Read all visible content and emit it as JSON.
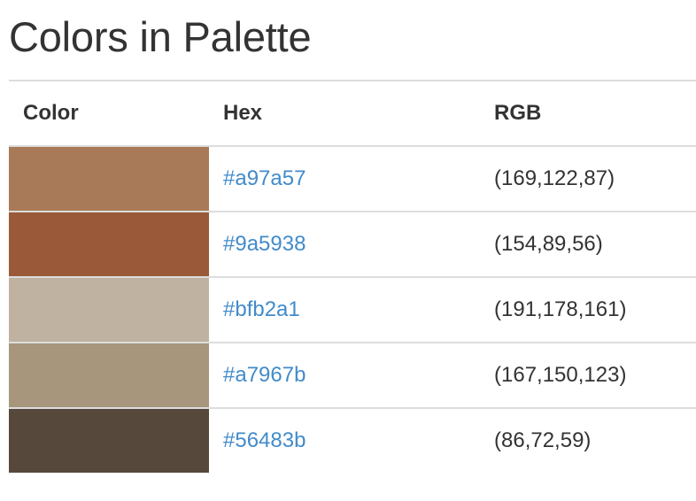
{
  "page": {
    "title": "Colors in Palette"
  },
  "table": {
    "headers": {
      "color": "Color",
      "hex": "Hex",
      "rgb": "RGB"
    },
    "rows": [
      {
        "swatch_color": "#a97a57",
        "hex": "#a97a57",
        "rgb": "(169,122,87)"
      },
      {
        "swatch_color": "#9a5938",
        "hex": "#9a5938",
        "rgb": "(154,89,56)"
      },
      {
        "swatch_color": "#bfb2a1",
        "hex": "#bfb2a1",
        "rgb": "(191,178,161)"
      },
      {
        "swatch_color": "#a7967b",
        "hex": "#a7967b",
        "rgb": "(167,150,123)"
      },
      {
        "swatch_color": "#56483b",
        "hex": "#56483b",
        "rgb": "(86,72,59)"
      }
    ]
  },
  "colors": {
    "link": "#428bca",
    "text": "#333333",
    "border": "#dddddd"
  }
}
